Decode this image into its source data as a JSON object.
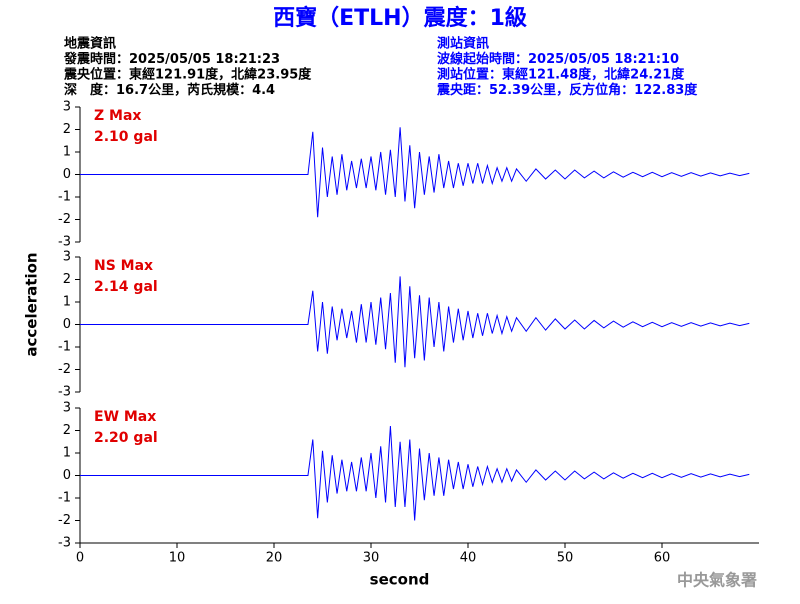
{
  "header": {
    "title": "西寶（ETLH）震度：1級",
    "left": [
      "地震資訊",
      "發震時間：2025/05/05 18:21:23",
      "震央位置：東經121.91度，北緯23.95度",
      "深　度：16.7公里，芮氏規模：4.4"
    ],
    "right": [
      "測站資訊",
      "波線起始時間：2025/05/05 18:21:10",
      "測站位置：東經121.48度，北緯24.21度",
      "震央距：52.39公里，反方位角：122.83度"
    ]
  },
  "footer": "中央氣象署",
  "chart_data": [
    {
      "type": "line",
      "annotations": [
        "Z Max",
        "2.10 gal"
      ],
      "color": "#0000ff",
      "xlim": [
        0,
        70
      ],
      "ylim": [
        -3,
        3
      ],
      "yticks": [
        3,
        2,
        1,
        0,
        -1,
        -2,
        -3
      ],
      "x": [
        0,
        20,
        23.5,
        24,
        24.5,
        25,
        25.5,
        26,
        26.5,
        27,
        27.5,
        28,
        28.5,
        29,
        29.5,
        30,
        30.5,
        31,
        31.5,
        32,
        32.5,
        33,
        33.5,
        34,
        34.5,
        35,
        35.5,
        36,
        36.5,
        37,
        37.5,
        38,
        38.5,
        39,
        39.5,
        40,
        40.5,
        41,
        41.5,
        42,
        42.5,
        43,
        43.5,
        44,
        44.5,
        45,
        46,
        47,
        48,
        49,
        50,
        51,
        52,
        53,
        54,
        55,
        56,
        57,
        58,
        59,
        60,
        61,
        62,
        63,
        64,
        65,
        66,
        67,
        68,
        69
      ],
      "values": [
        0,
        0,
        0,
        1.9,
        -1.9,
        1.2,
        -1.0,
        0.8,
        -0.9,
        0.9,
        -0.7,
        0.6,
        -0.6,
        0.7,
        -0.6,
        0.8,
        -0.7,
        1.0,
        -0.9,
        1.1,
        -1.0,
        2.1,
        -1.2,
        1.3,
        -1.5,
        1.0,
        -0.9,
        0.8,
        -0.8,
        0.9,
        -0.6,
        0.6,
        -0.6,
        0.5,
        -0.5,
        0.5,
        -0.4,
        0.5,
        -0.4,
        0.4,
        -0.4,
        0.3,
        -0.3,
        0.3,
        -0.3,
        0.25,
        -0.3,
        0.25,
        -0.2,
        0.2,
        -0.2,
        0.2,
        -0.15,
        0.15,
        -0.15,
        0.12,
        -0.12,
        0.1,
        -0.1,
        0.1,
        -0.1,
        0.08,
        -0.08,
        0.08,
        -0.07,
        0.07,
        -0.06,
        0.06,
        -0.05,
        0.05
      ]
    },
    {
      "type": "line",
      "annotations": [
        "NS Max",
        "2.14 gal"
      ],
      "color": "#0000ff",
      "ylabel": "acceleration",
      "xlim": [
        0,
        70
      ],
      "ylim": [
        -3,
        3
      ],
      "yticks": [
        3,
        2,
        1,
        0,
        -1,
        -2,
        -3
      ],
      "x": [
        0,
        20,
        23.5,
        24,
        24.5,
        25,
        25.5,
        26,
        26.5,
        27,
        27.5,
        28,
        28.5,
        29,
        29.5,
        30,
        30.5,
        31,
        31.5,
        32,
        32.5,
        33,
        33.5,
        34,
        34.5,
        35,
        35.5,
        36,
        36.5,
        37,
        37.5,
        38,
        38.5,
        39,
        39.5,
        40,
        40.5,
        41,
        41.5,
        42,
        42.5,
        43,
        43.5,
        44,
        44.5,
        45,
        46,
        47,
        48,
        49,
        50,
        51,
        52,
        53,
        54,
        55,
        56,
        57,
        58,
        59,
        60,
        61,
        62,
        63,
        64,
        65,
        66,
        67,
        68,
        69
      ],
      "values": [
        0,
        0,
        0,
        1.5,
        -1.2,
        1.0,
        -1.3,
        0.8,
        -0.7,
        0.7,
        -0.6,
        0.6,
        -0.8,
        0.9,
        -0.8,
        1.0,
        -0.9,
        1.2,
        -1.1,
        1.4,
        -1.7,
        2.14,
        -1.9,
        1.7,
        -1.5,
        1.3,
        -1.6,
        1.2,
        -1.0,
        1.0,
        -1.2,
        0.8,
        -0.8,
        0.7,
        -0.7,
        0.6,
        -0.6,
        0.5,
        -0.5,
        0.5,
        -0.4,
        0.4,
        -0.4,
        0.35,
        -0.3,
        0.3,
        -0.3,
        0.3,
        -0.25,
        0.25,
        -0.2,
        0.2,
        -0.2,
        0.18,
        -0.15,
        0.15,
        -0.12,
        0.12,
        -0.1,
        0.1,
        -0.1,
        0.08,
        -0.08,
        0.08,
        -0.07,
        0.07,
        -0.06,
        0.06,
        -0.05,
        0.05
      ]
    },
    {
      "type": "line",
      "annotations": [
        "EW Max",
        "2.20 gal"
      ],
      "color": "#0000ff",
      "xlabel": "second",
      "xlim": [
        0,
        70
      ],
      "ylim": [
        -3,
        3
      ],
      "yticks": [
        3,
        2,
        1,
        0,
        -1,
        -2,
        -3
      ],
      "xticks": [
        0,
        10,
        20,
        30,
        40,
        50,
        60
      ],
      "x": [
        0,
        20,
        23.5,
        24,
        24.5,
        25,
        25.5,
        26,
        26.5,
        27,
        27.5,
        28,
        28.5,
        29,
        29.5,
        30,
        30.5,
        31,
        31.5,
        32,
        32.5,
        33,
        33.5,
        34,
        34.5,
        35,
        35.5,
        36,
        36.5,
        37,
        37.5,
        38,
        38.5,
        39,
        39.5,
        40,
        40.5,
        41,
        41.5,
        42,
        42.5,
        43,
        43.5,
        44,
        44.5,
        45,
        46,
        47,
        48,
        49,
        50,
        51,
        52,
        53,
        54,
        55,
        56,
        57,
        58,
        59,
        60,
        61,
        62,
        63,
        64,
        65,
        66,
        67,
        68,
        69
      ],
      "values": [
        0,
        0,
        0,
        1.6,
        -1.9,
        1.1,
        -1.2,
        0.9,
        -0.8,
        0.7,
        -0.7,
        0.6,
        -0.7,
        0.8,
        -0.7,
        1.0,
        -1.0,
        1.3,
        -1.2,
        2.2,
        -1.4,
        1.5,
        -1.4,
        1.6,
        -2.0,
        1.2,
        -1.1,
        1.0,
        -0.9,
        0.8,
        -0.9,
        0.7,
        -0.6,
        0.6,
        -0.6,
        0.5,
        -0.5,
        0.4,
        -0.4,
        0.4,
        -0.3,
        0.3,
        -0.3,
        0.3,
        -0.25,
        0.25,
        -0.3,
        0.25,
        -0.2,
        0.2,
        -0.2,
        0.2,
        -0.15,
        0.15,
        -0.15,
        0.12,
        -0.12,
        0.1,
        -0.1,
        0.1,
        -0.1,
        0.08,
        -0.08,
        0.08,
        -0.07,
        0.07,
        -0.06,
        0.06,
        -0.05,
        0.05
      ]
    }
  ]
}
